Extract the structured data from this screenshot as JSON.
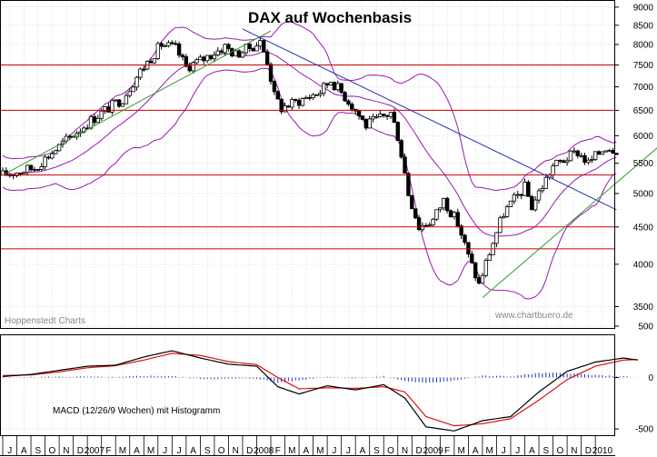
{
  "chart_data": [
    {
      "type": "candlestick",
      "title": "DAX auf Wochenbasis",
      "source_label": "Hoppenstedt Charts",
      "watermark": "www.chartbuero.de",
      "ylim": [
        3300,
        9100
      ],
      "y_ticks": [
        3500,
        4000,
        4500,
        5000,
        5500,
        6000,
        6500,
        7000,
        7500,
        8000,
        8500,
        9000
      ],
      "horizontal_lines": [
        7500,
        6500,
        5300,
        4500,
        4200
      ],
      "horizontal_line_color": "#cc0000",
      "price_path": [
        {
          "t": 0.0,
          "v": 5300
        },
        {
          "t": 4.5,
          "v": 5420
        },
        {
          "t": 8.0,
          "v": 5800
        },
        {
          "t": 12.5,
          "v": 6300
        },
        {
          "t": 17.0,
          "v": 6750
        },
        {
          "t": 19.5,
          "v": 7350
        },
        {
          "t": 22.5,
          "v": 8000
        },
        {
          "t": 24.5,
          "v": 7900
        },
        {
          "t": 26.0,
          "v": 7450
        },
        {
          "t": 28.0,
          "v": 7600
        },
        {
          "t": 31.5,
          "v": 7950
        },
        {
          "t": 33.0,
          "v": 7750
        },
        {
          "t": 36.5,
          "v": 8050
        },
        {
          "t": 37.5,
          "v": 7600
        },
        {
          "t": 38.5,
          "v": 6800
        },
        {
          "t": 39.5,
          "v": 6550
        },
        {
          "t": 42.0,
          "v": 6700
        },
        {
          "t": 45.0,
          "v": 6900
        },
        {
          "t": 46.5,
          "v": 7150
        },
        {
          "t": 49.0,
          "v": 6700
        },
        {
          "t": 51.5,
          "v": 6200
        },
        {
          "t": 55.0,
          "v": 6450
        },
        {
          "t": 56.0,
          "v": 6000
        },
        {
          "t": 57.5,
          "v": 5000
        },
        {
          "t": 59.0,
          "v": 4500
        },
        {
          "t": 61.0,
          "v": 4600
        },
        {
          "t": 62.5,
          "v": 4900
        },
        {
          "t": 64.5,
          "v": 4550
        },
        {
          "t": 66.0,
          "v": 4100
        },
        {
          "t": 67.5,
          "v": 3750
        },
        {
          "t": 69.0,
          "v": 4150
        },
        {
          "t": 71.0,
          "v": 4700
        },
        {
          "t": 74.0,
          "v": 5100
        },
        {
          "t": 75.0,
          "v": 4800
        },
        {
          "t": 78.0,
          "v": 5450
        },
        {
          "t": 81.5,
          "v": 5700
        },
        {
          "t": 83.0,
          "v": 5500
        },
        {
          "t": 85.5,
          "v": 5800
        },
        {
          "t": 87.0,
          "v": 5750
        }
      ],
      "trendlines": [
        {
          "color": "#2e9c2e",
          "points": [
            {
              "t": 0.0,
              "v": 5300
            },
            {
              "t": 38.0,
              "v": 8350
            }
          ]
        },
        {
          "color": "#2233aa",
          "points": [
            {
              "t": 34.0,
              "v": 8400
            },
            {
              "t": 87.0,
              "v": 4750
            }
          ]
        },
        {
          "color": "#2e9c2e",
          "points": [
            {
              "t": 68.0,
              "v": 3600
            },
            {
              "t": 93.0,
              "v": 5800
            }
          ]
        }
      ],
      "band_color": "#9b18b0"
    },
    {
      "type": "line",
      "label": "MACD (12/26/9 Wochen) mit Histogramm",
      "ylim": [
        -570,
        420
      ],
      "y_ticks": [
        500,
        0,
        -500
      ],
      "macd": [
        {
          "t": 0,
          "v": 10
        },
        {
          "t": 4,
          "v": 30
        },
        {
          "t": 8,
          "v": 70
        },
        {
          "t": 12,
          "v": 110
        },
        {
          "t": 16,
          "v": 120
        },
        {
          "t": 20,
          "v": 200
        },
        {
          "t": 24,
          "v": 260
        },
        {
          "t": 28,
          "v": 190
        },
        {
          "t": 32,
          "v": 130
        },
        {
          "t": 36,
          "v": 110
        },
        {
          "t": 39,
          "v": -90
        },
        {
          "t": 42,
          "v": -160
        },
        {
          "t": 46,
          "v": -80
        },
        {
          "t": 50,
          "v": -120
        },
        {
          "t": 54,
          "v": -70
        },
        {
          "t": 57,
          "v": -200
        },
        {
          "t": 60,
          "v": -480
        },
        {
          "t": 64,
          "v": -520
        },
        {
          "t": 68,
          "v": -420
        },
        {
          "t": 72,
          "v": -380
        },
        {
          "t": 76,
          "v": -140
        },
        {
          "t": 80,
          "v": 60
        },
        {
          "t": 84,
          "v": 150
        },
        {
          "t": 88,
          "v": 190
        },
        {
          "t": 90,
          "v": 170
        }
      ],
      "signal": [
        {
          "t": 0,
          "v": 20
        },
        {
          "t": 4,
          "v": 25
        },
        {
          "t": 8,
          "v": 55
        },
        {
          "t": 12,
          "v": 95
        },
        {
          "t": 16,
          "v": 115
        },
        {
          "t": 20,
          "v": 170
        },
        {
          "t": 24,
          "v": 235
        },
        {
          "t": 28,
          "v": 215
        },
        {
          "t": 32,
          "v": 155
        },
        {
          "t": 36,
          "v": 125
        },
        {
          "t": 39,
          "v": 0
        },
        {
          "t": 42,
          "v": -110
        },
        {
          "t": 46,
          "v": -100
        },
        {
          "t": 50,
          "v": -105
        },
        {
          "t": 54,
          "v": -90
        },
        {
          "t": 57,
          "v": -140
        },
        {
          "t": 60,
          "v": -380
        },
        {
          "t": 64,
          "v": -470
        },
        {
          "t": 68,
          "v": -450
        },
        {
          "t": 72,
          "v": -400
        },
        {
          "t": 76,
          "v": -220
        },
        {
          "t": 80,
          "v": -20
        },
        {
          "t": 84,
          "v": 110
        },
        {
          "t": 88,
          "v": 170
        },
        {
          "t": 90,
          "v": 175
        }
      ],
      "macd_color": "#000000",
      "signal_color": "#dd1111",
      "histogram_color": "#2233bb"
    }
  ],
  "x_axis": {
    "labels": [
      "J",
      "A",
      "S",
      "O",
      "N",
      "D",
      "2007",
      "F",
      "M",
      "A",
      "M",
      "J",
      "J",
      "A",
      "S",
      "O",
      "N",
      "D",
      "2008",
      "F",
      "M",
      "A",
      "M",
      "J",
      "J",
      "A",
      "S",
      "O",
      "N",
      "D",
      "2009",
      "F",
      "M",
      "A",
      "M",
      "J",
      "J",
      "A",
      "S",
      "O",
      "N",
      "D",
      "2010"
    ]
  }
}
